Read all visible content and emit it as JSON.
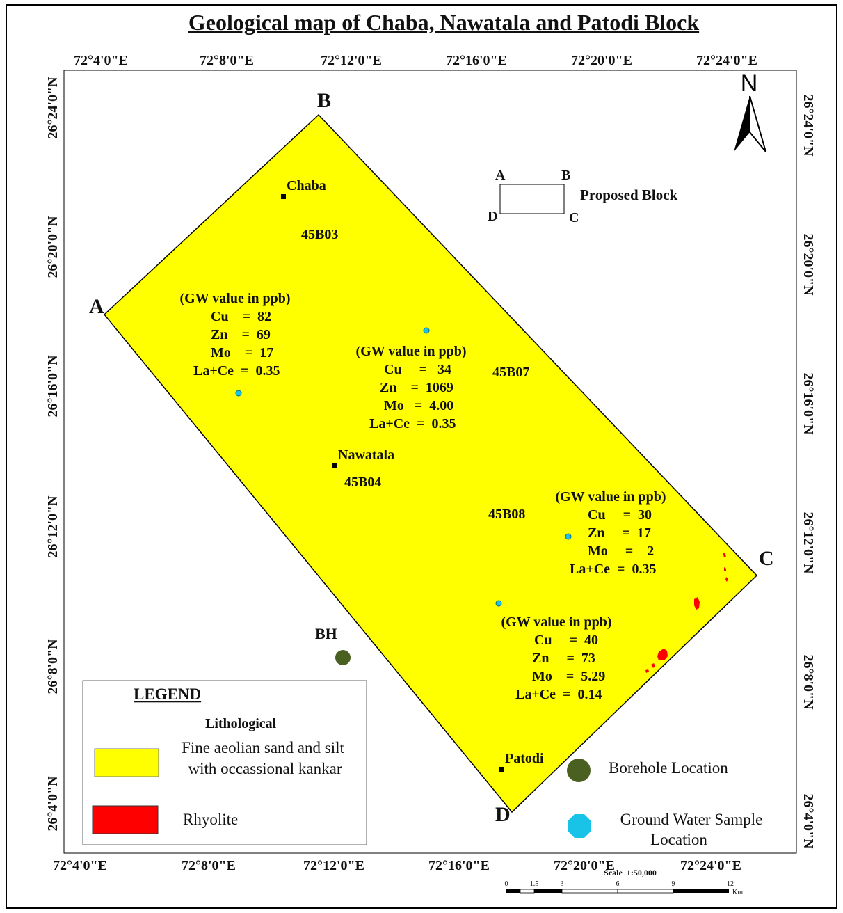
{
  "title": "Geological  map of Chaba, Nawatala and Patodi Block",
  "longitude_ticks_top": [
    "72°4'0\"E",
    "72°8'0\"E",
    "72°12'0\"E",
    "72°16'0\"E",
    "72°20'0\"E",
    "72°24'0\"E"
  ],
  "longitude_ticks_bottom": [
    "72°4'0\"E",
    "72°8'0\"E",
    "72°12'0\"E",
    "72°16'0\"E",
    "72°20'0\"E",
    "72°24'0\"E"
  ],
  "latitude_ticks": [
    "26°24'0\"N",
    "26°20'0\"N",
    "26°16'0\"N",
    "26°12'0\"N",
    "26°8'0\"N",
    "26°4'0\"N"
  ],
  "north_arrow": "N",
  "corners": {
    "a": "A",
    "b": "B",
    "c": "C",
    "d": "D"
  },
  "villages": {
    "chaba": "Chaba",
    "nawatala": "Nawatala",
    "patodi": "Patodi"
  },
  "toposheets": {
    "t1": "45B03",
    "t2": "45B07",
    "t3": "45B04",
    "t4": "45B08"
  },
  "borehole_label": "BH",
  "gw_samples": [
    {
      "heading": "(GW value in ppb)",
      "cu": "Cu    =  82",
      "zn": "Zn    =  69",
      "mo": "Mo    =  17",
      "lace": "La+Ce  =  0.35"
    },
    {
      "heading": "(GW value in ppb)",
      "cu": "Cu     =   34",
      "zn": "Zn    =  1069",
      "mo": "Mo   =  4.00",
      "lace": "La+Ce  =  0.35"
    },
    {
      "heading": "(GW value in ppb)",
      "cu": "Cu     =  30",
      "zn": "Zn     =  17",
      "mo": "Mo     =    2",
      "lace": "La+Ce  =  0.35"
    },
    {
      "heading": "(GW value in ppb)",
      "cu": "Cu     =  40",
      "zn": "Zn     =  73",
      "mo": "Mo    =  5.29",
      "lace": "La+Ce  =  0.14"
    }
  ],
  "proposed_block": {
    "a": "A",
    "b": "B",
    "c": "C",
    "d": "D",
    "label": "Proposed Block"
  },
  "legend": {
    "title": "LEGEND",
    "subtitle": "Lithological",
    "sand_line1": "Fine aeolian sand and silt",
    "sand_line2": "with occassional kankar",
    "rhyolite": "Rhyolite",
    "borehole": "Borehole Location",
    "gw_line1": "Ground Water Sample",
    "gw_line2": "Location"
  },
  "scale": {
    "label": "Scale  1:50,000",
    "ticks": [
      "0",
      "1.5",
      "3",
      "6",
      "9",
      "12"
    ],
    "unit": "Km"
  },
  "colors": {
    "sand": "#ffff00",
    "rhyolite": "#ff0000",
    "borehole": "#4a6020",
    "gw_sample": "#19c3e8",
    "village": "#000000"
  }
}
